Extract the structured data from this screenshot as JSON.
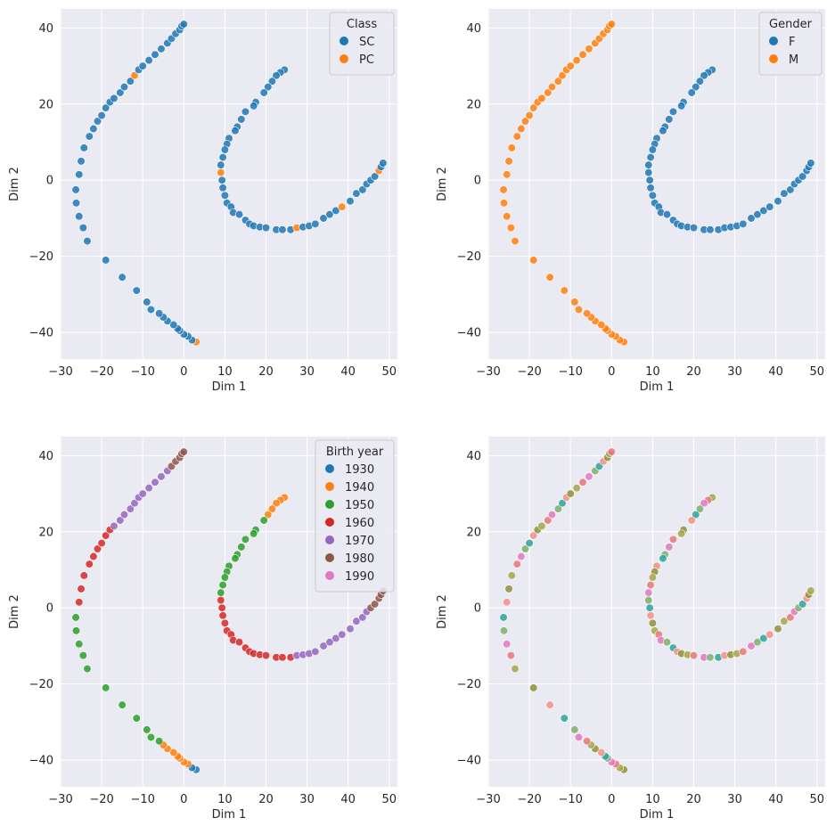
{
  "chart_data": [
    {
      "type": "scatter",
      "panel": "top-left",
      "xlabel": "Dim 1",
      "ylabel": "Dim 2",
      "xlim": [
        -30,
        52
      ],
      "ylim": [
        -47,
        45
      ],
      "xticks": [
        -30,
        -20,
        -10,
        0,
        10,
        20,
        30,
        40,
        50
      ],
      "yticks": [
        -40,
        -20,
        0,
        20,
        40
      ],
      "grid": true,
      "legend": {
        "title": "Class",
        "position": "top-right",
        "entries": [
          {
            "label": "SC",
            "color": "#1f77b4"
          },
          {
            "label": "PC",
            "color": "#ff7f0e"
          }
        ]
      },
      "color_mode": "class"
    },
    {
      "type": "scatter",
      "panel": "top-right",
      "xlabel": "Dim 1",
      "ylabel": "Dim 2",
      "xlim": [
        -30,
        52
      ],
      "ylim": [
        -47,
        45
      ],
      "xticks": [
        -30,
        -20,
        -10,
        0,
        10,
        20,
        30,
        40,
        50
      ],
      "yticks": [
        -40,
        -20,
        0,
        20,
        40
      ],
      "grid": true,
      "legend": {
        "title": "Gender",
        "position": "top-right",
        "entries": [
          {
            "label": "F",
            "color": "#1f77b4"
          },
          {
            "label": "M",
            "color": "#ff7f0e"
          }
        ]
      },
      "color_mode": "gender"
    },
    {
      "type": "scatter",
      "panel": "bottom-left",
      "xlabel": "Dim 1",
      "ylabel": "Dim 2",
      "xlim": [
        -30,
        52
      ],
      "ylim": [
        -47,
        45
      ],
      "xticks": [
        -30,
        -20,
        -10,
        0,
        10,
        20,
        30,
        40,
        50
      ],
      "yticks": [
        -40,
        -20,
        0,
        20,
        40
      ],
      "grid": true,
      "legend": {
        "title": "Birth year",
        "position": "top-right",
        "entries": [
          {
            "label": "1930",
            "color": "#1f77b4"
          },
          {
            "label": "1940",
            "color": "#ff7f0e"
          },
          {
            "label": "1950",
            "color": "#2ca02c"
          },
          {
            "label": "1960",
            "color": "#d62728"
          },
          {
            "label": "1970",
            "color": "#9467bd"
          },
          {
            "label": "1980",
            "color": "#8c564b"
          },
          {
            "label": "1990",
            "color": "#e377c2"
          }
        ]
      },
      "color_mode": "birth_year"
    },
    {
      "type": "scatter",
      "panel": "bottom-right",
      "xlabel": "Dim 1",
      "ylabel": "Dim 2",
      "xlim": [
        -30,
        52
      ],
      "ylim": [
        -47,
        45
      ],
      "xticks": [
        -30,
        -20,
        -10,
        0,
        10,
        20,
        30,
        40,
        50
      ],
      "yticks": [
        -40,
        -20,
        0,
        20,
        40
      ],
      "grid": true,
      "legend": null,
      "color_mode": "mixed"
    }
  ],
  "points": {
    "arc_left": [
      [
        3,
        -42.5
      ],
      [
        2,
        -42
      ],
      [
        1,
        -41
      ],
      [
        0,
        -40.5
      ],
      [
        -1,
        -39.5
      ],
      [
        -1.5,
        -39
      ],
      [
        -2.5,
        -38
      ],
      [
        -4,
        -37
      ],
      [
        -5,
        -36
      ],
      [
        -6,
        -35
      ],
      [
        -8,
        -34
      ],
      [
        -9,
        -32
      ],
      [
        -11.5,
        -29
      ],
      [
        -15,
        -25.5
      ],
      [
        -19,
        -21
      ],
      [
        -23.5,
        -16
      ],
      [
        -24.5,
        -12.5
      ],
      [
        -25.5,
        -9.5
      ],
      [
        -26.2,
        -6
      ],
      [
        -26.3,
        -2.5
      ],
      [
        -25.5,
        1.5
      ],
      [
        -25,
        5
      ],
      [
        -24.3,
        8.5
      ],
      [
        -23,
        11.5
      ],
      [
        -22,
        13.5
      ],
      [
        -21,
        15.5
      ],
      [
        -20,
        17
      ],
      [
        -19,
        19
      ],
      [
        -18,
        20.5
      ],
      [
        -17,
        21.5
      ],
      [
        -15.5,
        23
      ],
      [
        -14.5,
        24.5
      ],
      [
        -13,
        26
      ],
      [
        -12,
        27.5
      ],
      [
        -11,
        29
      ],
      [
        -10,
        30
      ],
      [
        -8.5,
        31.5
      ],
      [
        -7,
        33
      ],
      [
        -5.5,
        34.5
      ],
      [
        -4,
        36
      ],
      [
        -3,
        37.2
      ],
      [
        -2,
        38.5
      ],
      [
        -1,
        39.5
      ],
      [
        -0.5,
        40.5
      ],
      [
        0,
        41
      ]
    ],
    "arc_right": [
      [
        24.5,
        29
      ],
      [
        23.5,
        28.3
      ],
      [
        22.5,
        27.5
      ],
      [
        21.5,
        26
      ],
      [
        20.5,
        24.5
      ],
      [
        19.5,
        23
      ],
      [
        17.5,
        20.5
      ],
      [
        17,
        19.5
      ],
      [
        15,
        18
      ],
      [
        14,
        16
      ],
      [
        13,
        14
      ],
      [
        12.5,
        13
      ],
      [
        11,
        11
      ],
      [
        10.5,
        9.5
      ],
      [
        10,
        8
      ],
      [
        9.5,
        6
      ],
      [
        9,
        4
      ],
      [
        9,
        2
      ],
      [
        9.3,
        0
      ],
      [
        9.5,
        -2
      ],
      [
        10,
        -4
      ],
      [
        10.5,
        -6
      ],
      [
        11.5,
        -7
      ],
      [
        12,
        -8.5
      ],
      [
        13.5,
        -9
      ],
      [
        15,
        -10.5
      ],
      [
        16,
        -11.5
      ],
      [
        17,
        -12
      ],
      [
        18.5,
        -12.3
      ],
      [
        20,
        -12.5
      ],
      [
        22.5,
        -13
      ],
      [
        24,
        -13
      ],
      [
        26,
        -13
      ],
      [
        27.5,
        -12.5
      ],
      [
        29,
        -12.3
      ],
      [
        30.5,
        -12
      ],
      [
        32,
        -11.5
      ],
      [
        34,
        -10
      ],
      [
        35.5,
        -9
      ],
      [
        37,
        -8
      ],
      [
        38.5,
        -7
      ],
      [
        40.5,
        -5.5
      ],
      [
        42,
        -3.5
      ],
      [
        43.5,
        -2.5
      ],
      [
        44.5,
        -1
      ],
      [
        45.5,
        0
      ],
      [
        46.5,
        1
      ],
      [
        47.5,
        2.5
      ],
      [
        48,
        3.5
      ],
      [
        48.5,
        4.5
      ]
    ],
    "pc_indices_left": [
      0,
      33
    ],
    "pc_indices_right": [
      17,
      33,
      40,
      47
    ]
  }
}
